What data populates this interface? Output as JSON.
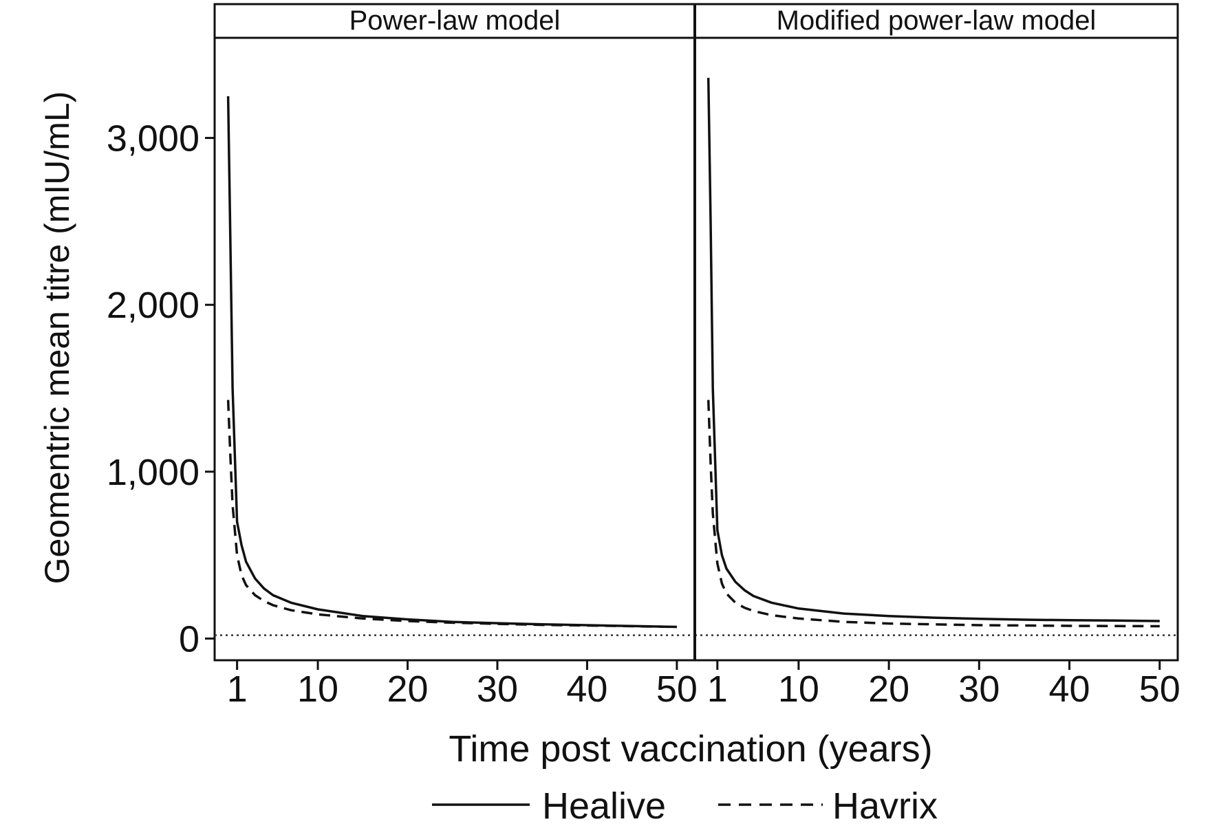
{
  "chart_data": {
    "type": "line",
    "ylabel": "Geomentric mean titre (mIU/mL)",
    "xlabel": "Time post vaccination (years)",
    "panels": [
      {
        "title": "Power-law model",
        "series": [
          {
            "name": "Healive",
            "style": "solid",
            "x": [
              0,
              0.25,
              0.5,
              1,
              1.5,
              2,
              3,
              4,
              5,
              7,
              10,
              15,
              20,
              25,
              30,
              35,
              40,
              45,
              50
            ],
            "y": [
              3250,
              2400,
              1500,
              700,
              560,
              460,
              360,
              300,
              260,
              215,
              175,
              135,
              115,
              100,
              92,
              85,
              80,
              75,
              70
            ]
          },
          {
            "name": "Havrix",
            "style": "dashed",
            "x": [
              0,
              0.25,
              0.5,
              1,
              1.5,
              2,
              3,
              4,
              5,
              7,
              10,
              15,
              20,
              25,
              30,
              35,
              40,
              45,
              50
            ],
            "y": [
              1430,
              1100,
              800,
              500,
              380,
              320,
              260,
              225,
              200,
              170,
              145,
              120,
              105,
              95,
              88,
              82,
              78,
              74,
              70
            ]
          }
        ]
      },
      {
        "title": "Modified power-law model",
        "series": [
          {
            "name": "Healive",
            "style": "solid",
            "x": [
              0,
              0.25,
              0.5,
              1,
              1.5,
              2,
              3,
              4,
              5,
              7,
              10,
              15,
              20,
              25,
              30,
              35,
              40,
              45,
              50
            ],
            "y": [
              3360,
              2500,
              1500,
              650,
              500,
              420,
              340,
              290,
              255,
              215,
              180,
              150,
              135,
              125,
              118,
              113,
              110,
              108,
              105
            ]
          },
          {
            "name": "Havrix",
            "style": "dashed",
            "x": [
              0,
              0.25,
              0.5,
              1,
              1.5,
              2,
              3,
              4,
              5,
              7,
              10,
              15,
              20,
              25,
              30,
              35,
              40,
              45,
              50
            ],
            "y": [
              1430,
              1050,
              750,
              450,
              330,
              270,
              215,
              185,
              165,
              140,
              120,
              100,
              90,
              85,
              80,
              78,
              76,
              75,
              74
            ]
          }
        ]
      }
    ],
    "x_ticks": [
      1,
      10,
      20,
      30,
      40,
      50
    ],
    "y_ticks": [
      0,
      1000,
      2000,
      3000
    ],
    "y_tick_labels": [
      "0",
      "1,000",
      "2,000",
      "3,000"
    ],
    "xlim": [
      -1.5,
      52
    ],
    "ylim": [
      -130,
      3600
    ],
    "reference_line": {
      "y": 20,
      "style": "dotted"
    },
    "legend": {
      "placement": "bottom",
      "items": [
        {
          "label": "Healive",
          "style": "solid"
        },
        {
          "label": "Havrix",
          "style": "dashed"
        }
      ]
    },
    "grid": false
  }
}
